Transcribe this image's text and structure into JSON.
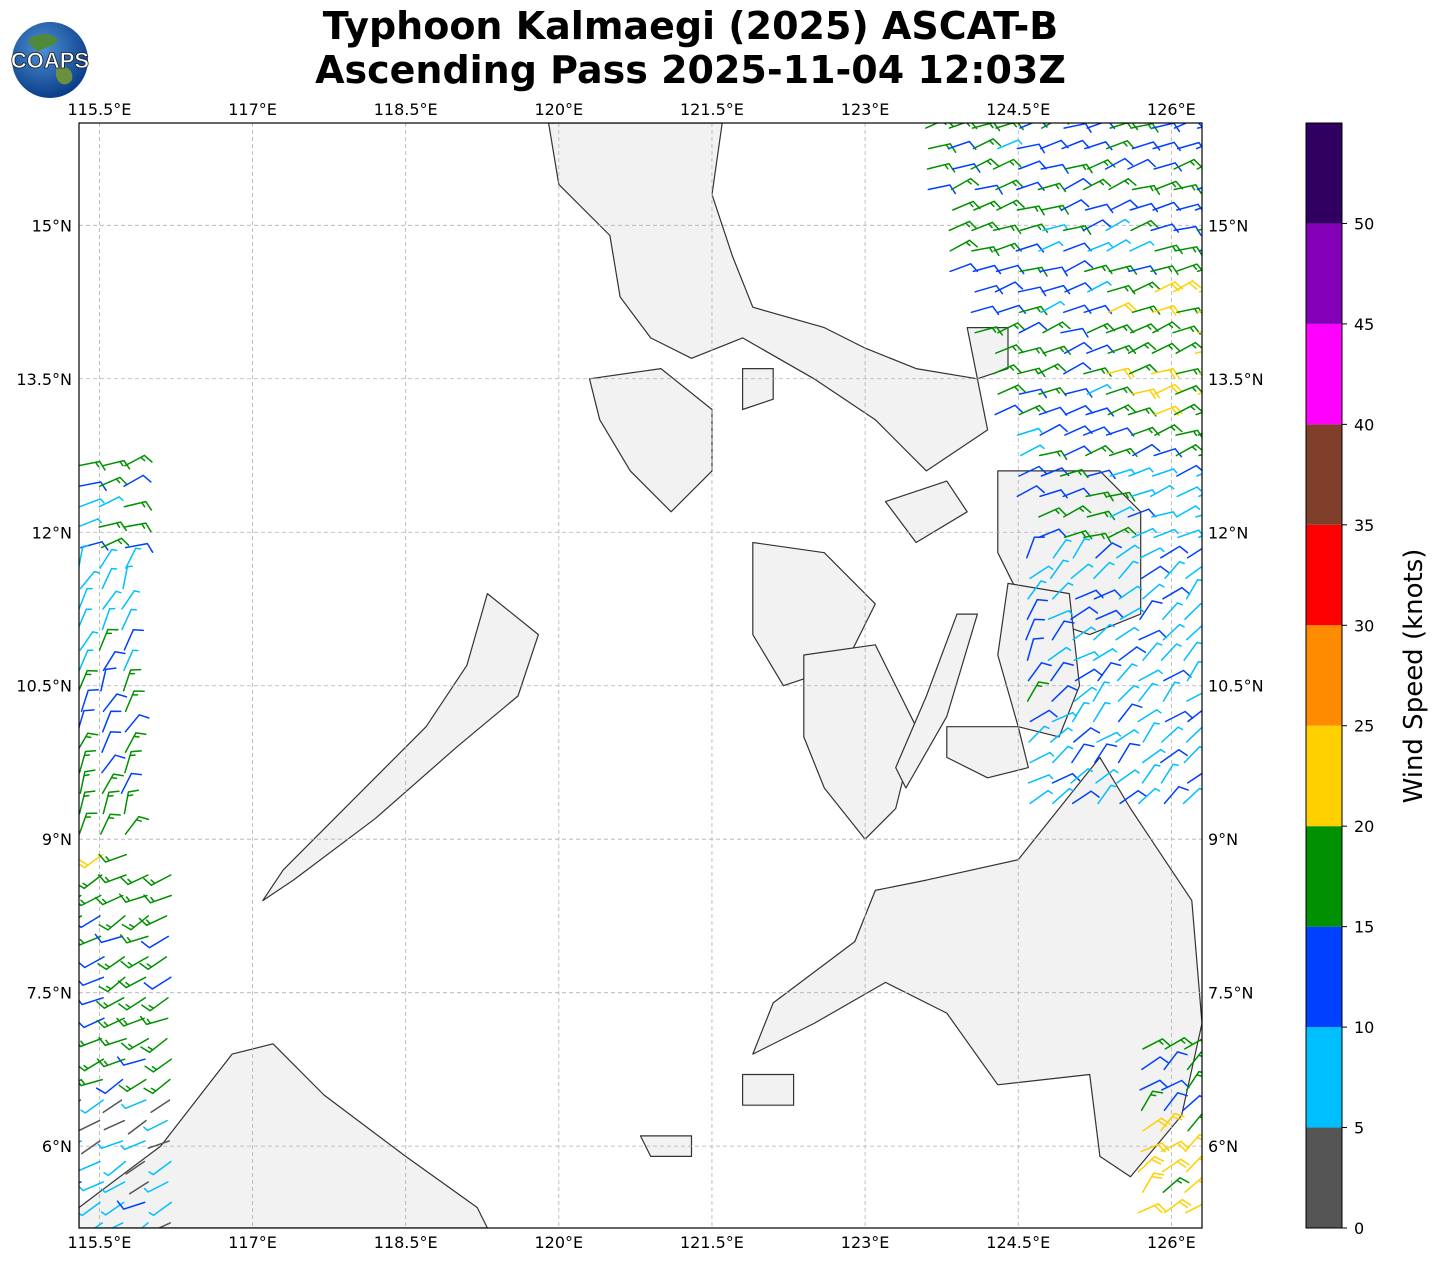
{
  "title": {
    "line1": "Typhoon Kalmaegi (2025) ASCAT-B",
    "line2": "Ascending Pass 2025-11-04 12:03Z"
  },
  "logo": {
    "text": "COAPS",
    "icon": "globe-icon"
  },
  "map": {
    "lon_range": [
      115.3,
      126.3
    ],
    "lat_range": [
      5.2,
      16.0
    ],
    "lon_ticks": [
      "115.5°E",
      "117°E",
      "118.5°E",
      "120°E",
      "121.5°E",
      "123°E",
      "124.5°E",
      "126°E"
    ],
    "lon_tick_values": [
      115.5,
      117,
      118.5,
      120,
      121.5,
      123,
      124.5,
      126
    ],
    "lat_ticks": [
      "15°N",
      "13.5°N",
      "12°N",
      "10.5°N",
      "9°N",
      "7.5°N",
      "6°N"
    ],
    "lat_tick_values": [
      15,
      13.5,
      12,
      10.5,
      9,
      7.5,
      6
    ],
    "gridlines": true,
    "land_color": "#f2f2f2",
    "coastline_color": "#333333"
  },
  "colorbar": {
    "label": "Wind Speed (knots)",
    "ticks": [
      "0",
      "5",
      "10",
      "15",
      "20",
      "25",
      "30",
      "35",
      "40",
      "45",
      "50"
    ],
    "bounds": [
      0,
      5,
      10,
      15,
      20,
      25,
      30,
      35,
      40,
      45,
      50,
      55
    ],
    "colors": [
      "#555555",
      "#00bfff",
      "#0040ff",
      "#009000",
      "#ffd000",
      "#ff8c00",
      "#ff0000",
      "#7f3f2a",
      "#ff00ff",
      "#8400b8",
      "#2f0060"
    ]
  },
  "wind_swaths": [
    {
      "name": "east-swath",
      "lon_min": 123.4,
      "lon_max": 126.3,
      "lat_min": 11.8,
      "lat_max": 16.0
    },
    {
      "name": "east-swath-south",
      "lon_min": 124.6,
      "lon_max": 126.3,
      "lat_min": 5.2,
      "lat_max": 11.8
    },
    {
      "name": "west-swath",
      "lon_min": 115.3,
      "lon_max": 116.2,
      "lat_min": 5.2,
      "lat_max": 12.7
    }
  ]
}
